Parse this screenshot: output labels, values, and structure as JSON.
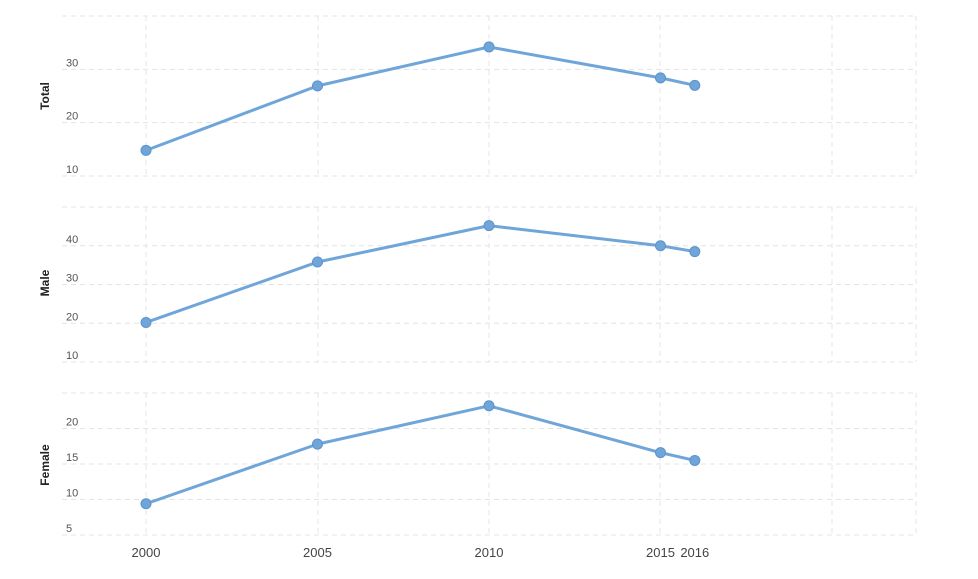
{
  "chart_data": [
    {
      "type": "line",
      "panel_label": "Total",
      "x": [
        2000,
        2005,
        2010,
        2015,
        2016
      ],
      "values": [
        14.8,
        26.9,
        34.2,
        28.4,
        27.0
      ],
      "ylim": [
        10,
        40
      ],
      "yticks": [
        10,
        20,
        30
      ],
      "xlabel": "",
      "grid": true,
      "color": "#6fa5d8"
    },
    {
      "type": "line",
      "panel_label": "Male",
      "x": [
        2000,
        2005,
        2010,
        2015,
        2016
      ],
      "values": [
        20.2,
        35.8,
        45.2,
        40.0,
        38.5
      ],
      "ylim": [
        10,
        50
      ],
      "yticks": [
        10,
        20,
        30,
        40
      ],
      "xlabel": "",
      "grid": true,
      "color": "#6fa5d8"
    },
    {
      "type": "line",
      "panel_label": "Female",
      "x": [
        2000,
        2005,
        2010,
        2015,
        2016
      ],
      "values": [
        9.4,
        17.8,
        23.2,
        16.6,
        15.5
      ],
      "ylim": [
        5,
        25
      ],
      "yticks": [
        5,
        10,
        15,
        20
      ],
      "xlabel": "",
      "grid": true,
      "color": "#6fa5d8"
    }
  ],
  "x_axis": {
    "ticks": [
      2000,
      2005,
      2010,
      2015,
      2016
    ],
    "tick_labels": [
      "2000",
      "2005",
      "2010",
      "2015",
      "2016"
    ]
  }
}
